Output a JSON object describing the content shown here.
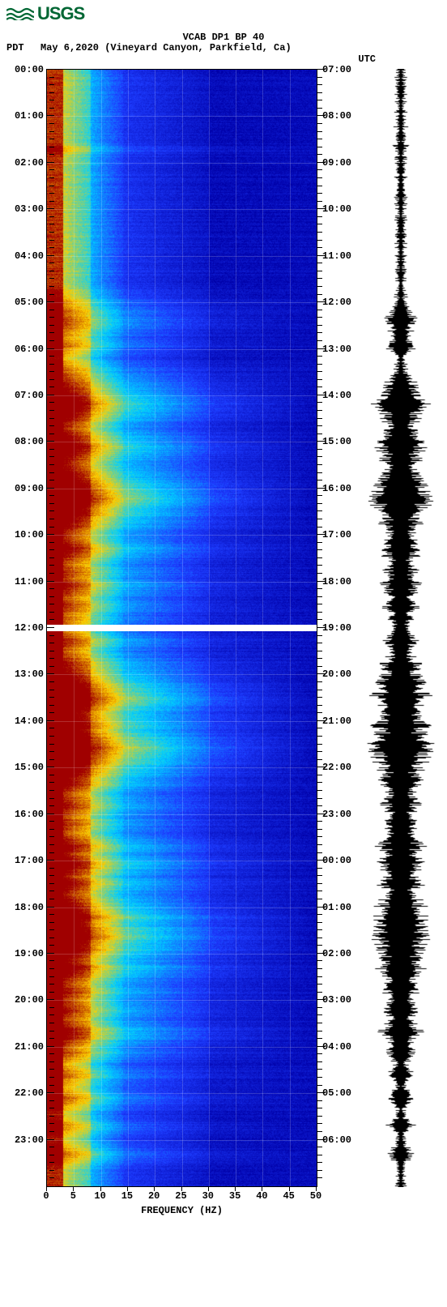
{
  "logo_text": "USGS",
  "title": "VCAB DP1 BP 40",
  "tz_left": "PDT",
  "date_loc": "May 6,2020 (Vineyard Canyon, Parkfield, Ca)",
  "tz_right": "UTC",
  "xaxis_label": "FREQUENCY (HZ)",
  "spectrogram": {
    "type": "spectrogram",
    "xlim": [
      0,
      50
    ],
    "ylim_hours_pdt": [
      0,
      24
    ],
    "ylim_hours_utc": [
      7,
      31
    ],
    "time_gap_at": 12,
    "colors": {
      "deep": "#0000a8",
      "mid": "#1e3cff",
      "high": "#00d0ff",
      "hot": "#ffd000",
      "peak": "#a00000"
    },
    "grid_color": "#ffffff",
    "grid_opacity": 0.18,
    "vgrid_at": [
      5,
      10,
      15,
      20,
      25,
      30,
      35,
      40,
      45
    ],
    "hgrid_every_hour": true,
    "noise_profile": {
      "low_freq_intense_until_hz": 3,
      "warm_band_until_hz": 8,
      "bright_band_until_hz": 14,
      "fade_to_deep_after_hz": 30
    },
    "events": [
      {
        "t": 1.7,
        "strength": 0.1,
        "width": 0.15
      },
      {
        "t": 5.4,
        "strength": 0.3,
        "width": 0.8
      },
      {
        "t": 5.9,
        "strength": 0.25,
        "width": 0.4
      },
      {
        "t": 6.0,
        "strength": 0.2,
        "width": 0.3
      },
      {
        "t": 6.9,
        "strength": 0.35,
        "width": 0.8
      },
      {
        "t": 7.2,
        "strength": 0.57,
        "width": 1.2
      },
      {
        "t": 7.6,
        "strength": 0.3,
        "width": 0.5
      },
      {
        "t": 8.1,
        "strength": 0.55,
        "width": 1.0
      },
      {
        "t": 8.4,
        "strength": 0.4,
        "width": 0.6
      },
      {
        "t": 8.7,
        "strength": 0.35,
        "width": 0.5
      },
      {
        "t": 9.0,
        "strength": 0.6,
        "width": 1.3
      },
      {
        "t": 9.2,
        "strength": 0.7,
        "width": 1.5
      },
      {
        "t": 9.5,
        "strength": 0.45,
        "width": 0.7
      },
      {
        "t": 9.8,
        "strength": 0.4,
        "width": 0.7
      },
      {
        "t": 10.3,
        "strength": 0.45,
        "width": 0.8
      },
      {
        "t": 10.8,
        "strength": 0.35,
        "width": 0.6
      },
      {
        "t": 11.1,
        "strength": 0.4,
        "width": 0.7
      },
      {
        "t": 11.5,
        "strength": 0.35,
        "width": 0.6
      },
      {
        "t": 11.8,
        "strength": 0.25,
        "width": 0.4
      },
      {
        "t": 12.3,
        "strength": 0.35,
        "width": 0.6
      },
      {
        "t": 12.8,
        "strength": 0.4,
        "width": 0.7
      },
      {
        "t": 13.2,
        "strength": 0.55,
        "width": 1.0
      },
      {
        "t": 13.5,
        "strength": 0.7,
        "width": 1.4
      },
      {
        "t": 13.9,
        "strength": 0.45,
        "width": 0.8
      },
      {
        "t": 14.1,
        "strength": 0.6,
        "width": 1.1
      },
      {
        "t": 14.6,
        "strength": 0.75,
        "width": 1.6
      },
      {
        "t": 14.9,
        "strength": 0.5,
        "width": 0.9
      },
      {
        "t": 15.3,
        "strength": 0.45,
        "width": 0.8
      },
      {
        "t": 15.8,
        "strength": 0.4,
        "width": 0.7
      },
      {
        "t": 16.2,
        "strength": 0.35,
        "width": 0.6
      },
      {
        "t": 16.7,
        "strength": 0.45,
        "width": 0.8
      },
      {
        "t": 17.1,
        "strength": 0.5,
        "width": 0.9
      },
      {
        "t": 17.5,
        "strength": 0.45,
        "width": 0.8
      },
      {
        "t": 18.0,
        "strength": 0.5,
        "width": 0.9
      },
      {
        "t": 18.2,
        "strength": 0.6,
        "width": 1.1
      },
      {
        "t": 18.6,
        "strength": 0.65,
        "width": 1.3
      },
      {
        "t": 18.9,
        "strength": 0.55,
        "width": 1.0
      },
      {
        "t": 19.3,
        "strength": 0.5,
        "width": 0.9
      },
      {
        "t": 19.8,
        "strength": 0.4,
        "width": 0.7
      },
      {
        "t": 20.2,
        "strength": 0.4,
        "width": 0.7
      },
      {
        "t": 20.7,
        "strength": 0.45,
        "width": 0.8
      },
      {
        "t": 21.1,
        "strength": 0.3,
        "width": 0.5
      },
      {
        "t": 21.6,
        "strength": 0.25,
        "width": 0.4
      },
      {
        "t": 22.1,
        "strength": 0.25,
        "width": 0.4
      },
      {
        "t": 22.7,
        "strength": 0.2,
        "width": 0.3
      },
      {
        "t": 23.3,
        "strength": 0.22,
        "width": 0.35
      }
    ]
  },
  "xticks": [
    0,
    5,
    10,
    15,
    20,
    25,
    30,
    35,
    40,
    45,
    50
  ],
  "left_ticks": [
    "00:00",
    "01:00",
    "02:00",
    "03:00",
    "04:00",
    "05:00",
    "06:00",
    "07:00",
    "08:00",
    "09:00",
    "10:00",
    "11:00",
    "12:00",
    "13:00",
    "14:00",
    "15:00",
    "16:00",
    "17:00",
    "18:00",
    "19:00",
    "20:00",
    "21:00",
    "22:00",
    "23:00"
  ],
  "right_ticks": [
    "07:00",
    "08:00",
    "09:00",
    "10:00",
    "11:00",
    "12:00",
    "13:00",
    "14:00",
    "15:00",
    "16:00",
    "17:00",
    "18:00",
    "19:00",
    "20:00",
    "21:00",
    "22:00",
    "23:00",
    "00:00",
    "01:00",
    "02:00",
    "03:00",
    "04:00",
    "05:00",
    "06:00"
  ],
  "seismogram": {
    "type": "seismogram",
    "color": "#000000",
    "base_amplitude": 4,
    "burst_max_amplitude": 38
  }
}
